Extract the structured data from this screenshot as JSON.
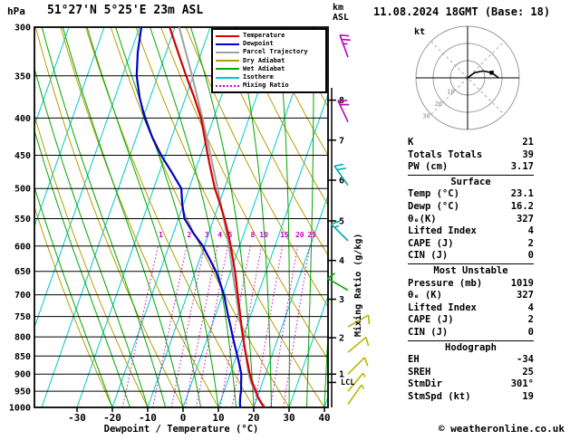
{
  "header": {
    "pressure_unit": "hPa",
    "station": "51°27'N 5°25'E 23m ASL",
    "km_label": "km",
    "asl_label": "ASL",
    "date": "11.08.2024 18GMT (Base: 18)"
  },
  "legend": {
    "items": [
      {
        "label": "Temperature",
        "color": "#d40000",
        "style": "solid"
      },
      {
        "label": "Dewpoint",
        "color": "#0000c8",
        "style": "solid"
      },
      {
        "label": "Parcel Trajectory",
        "color": "#a0a0a0",
        "style": "solid"
      },
      {
        "label": "Dry Adiabat",
        "color": "#b4a000",
        "style": "solid"
      },
      {
        "label": "Wet Adiabat",
        "color": "#00a800",
        "style": "solid"
      },
      {
        "label": "Isotherm",
        "color": "#00c8c8",
        "style": "solid"
      },
      {
        "label": "Mixing Ratio",
        "color": "#cc00cc",
        "style": "dotted"
      }
    ]
  },
  "axes": {
    "xlabel": "Dewpoint / Temperature (°C)",
    "right_label": "Mixing Ratio (g/kg)",
    "lcl_label": "LCL"
  },
  "chart_data": {
    "type": "skewt",
    "pressure_ticks": [
      300,
      350,
      400,
      450,
      500,
      550,
      600,
      650,
      700,
      750,
      800,
      850,
      900,
      950,
      1000
    ],
    "temp_ticks": [
      -30,
      -20,
      -10,
      0,
      10,
      20,
      30,
      40
    ],
    "isotherms_c": [
      -100,
      -90,
      -80,
      -70,
      -60,
      -50,
      -40,
      -30,
      -20,
      -10,
      0,
      10,
      20,
      30,
      40
    ],
    "dry_adiabats_c": [
      -20,
      -10,
      0,
      10,
      20,
      30,
      40,
      50,
      60,
      70,
      80,
      90,
      100,
      110,
      120,
      130,
      140,
      150,
      160,
      170,
      180
    ],
    "wet_adiabats_c": [
      -20,
      -15,
      -10,
      -5,
      0,
      5,
      10,
      15,
      20,
      25,
      30,
      35,
      40
    ],
    "mixing_ratios_gkg": [
      1,
      2,
      3,
      4,
      5,
      8,
      10,
      15,
      20,
      25
    ],
    "temperature_profile": [
      [
        1000,
        23.1
      ],
      [
        990,
        22.0
      ],
      [
        970,
        20.3
      ],
      [
        950,
        19.0
      ],
      [
        925,
        17.2
      ],
      [
        900,
        15.6
      ],
      [
        875,
        14.2
      ],
      [
        850,
        12.8
      ],
      [
        825,
        11.4
      ],
      [
        800,
        10.0
      ],
      [
        775,
        8.6
      ],
      [
        750,
        7.2
      ],
      [
        725,
        5.8
      ],
      [
        700,
        4.3
      ],
      [
        675,
        2.8
      ],
      [
        650,
        1.2
      ],
      [
        625,
        -0.6
      ],
      [
        600,
        -2.5
      ],
      [
        575,
        -4.6
      ],
      [
        550,
        -7.0
      ],
      [
        525,
        -9.7
      ],
      [
        500,
        -12.7
      ],
      [
        475,
        -15.3
      ],
      [
        450,
        -18.0
      ],
      [
        425,
        -20.7
      ],
      [
        400,
        -23.6
      ],
      [
        375,
        -27.5
      ],
      [
        350,
        -32.0
      ],
      [
        325,
        -36.6
      ],
      [
        300,
        -41.5
      ]
    ],
    "dewpoint_profile": [
      [
        1000,
        16.2
      ],
      [
        990,
        15.8
      ],
      [
        970,
        15.2
      ],
      [
        950,
        14.8
      ],
      [
        925,
        14.0
      ],
      [
        900,
        13.2
      ],
      [
        875,
        11.8
      ],
      [
        850,
        10.3
      ],
      [
        825,
        8.7
      ],
      [
        800,
        7.1
      ],
      [
        775,
        5.5
      ],
      [
        750,
        3.8
      ],
      [
        725,
        2.1
      ],
      [
        700,
        0.4
      ],
      [
        675,
        -1.8
      ],
      [
        650,
        -4.2
      ],
      [
        625,
        -7.2
      ],
      [
        600,
        -10.4
      ],
      [
        575,
        -14.5
      ],
      [
        550,
        -18.3
      ],
      [
        525,
        -20.4
      ],
      [
        500,
        -22.2
      ],
      [
        475,
        -26.5
      ],
      [
        450,
        -31.2
      ],
      [
        425,
        -35.5
      ],
      [
        400,
        -39.5
      ],
      [
        375,
        -43.0
      ],
      [
        350,
        -46.0
      ],
      [
        325,
        -48.0
      ],
      [
        300,
        -49.5
      ]
    ],
    "parcel_profile": [
      [
        1000,
        23.1
      ],
      [
        975,
        20.9
      ],
      [
        950,
        18.7
      ],
      [
        925,
        16.8
      ],
      [
        900,
        15.3
      ],
      [
        875,
        14.0
      ],
      [
        850,
        12.7
      ],
      [
        800,
        9.9
      ],
      [
        750,
        6.9
      ],
      [
        700,
        3.8
      ],
      [
        650,
        0.5
      ],
      [
        600,
        -3.0
      ],
      [
        550,
        -7.2
      ],
      [
        500,
        -11.9
      ],
      [
        450,
        -17.2
      ],
      [
        400,
        -23.2
      ],
      [
        350,
        -30.3
      ],
      [
        300,
        -38.8
      ]
    ],
    "km_ticks": [
      [
        1,
        900
      ],
      [
        2,
        802
      ],
      [
        3,
        710
      ],
      [
        4,
        628
      ],
      [
        5,
        554
      ],
      [
        6,
        487
      ],
      [
        7,
        429
      ],
      [
        8,
        378
      ]
    ],
    "lcl_pressure": 924,
    "wind_barbs": [
      {
        "p": 330,
        "dir": 340,
        "speed": 25,
        "color": "#bb00bb"
      },
      {
        "p": 405,
        "dir": 335,
        "speed": 20,
        "color": "#bb00bb"
      },
      {
        "p": 495,
        "dir": 325,
        "speed": 20,
        "color": "#00aaaa"
      },
      {
        "p": 590,
        "dir": 315,
        "speed": 15,
        "color": "#00aaaa"
      },
      {
        "p": 690,
        "dir": 300,
        "speed": 10,
        "color": "#00aa00"
      },
      {
        "p": 775,
        "dir": 60,
        "speed": 10,
        "color": "#b8b800"
      },
      {
        "p": 840,
        "dir": 50,
        "speed": 10,
        "color": "#b8b800"
      },
      {
        "p": 900,
        "dir": 45,
        "speed": 10,
        "color": "#b8b800"
      },
      {
        "p": 950,
        "dir": 40,
        "speed": 5,
        "color": "#b8b800"
      },
      {
        "p": 990,
        "dir": 35,
        "speed": 5,
        "color": "#b8b800"
      }
    ],
    "colors": {
      "temperature": "#d40000",
      "dewpoint": "#0000c8",
      "parcel": "#a0a0a0",
      "dry_adiabat": "#b4a000",
      "wet_adiabat": "#00a800",
      "isotherm": "#00c8c8",
      "mixing_ratio": "#cc00cc",
      "grid": "#000000"
    },
    "p_range": [
      300,
      1000
    ],
    "t_axis_range": [
      -30,
      40
    ]
  },
  "hodograph": {
    "unit_label": "kt",
    "rings": [
      10,
      20,
      30
    ],
    "trace_uv": [
      [
        0,
        0
      ],
      [
        4,
        3
      ],
      [
        9,
        4
      ],
      [
        14,
        3
      ],
      [
        18,
        0
      ]
    ],
    "marker_uv": [
      14,
      3
    ]
  },
  "table": {
    "rows_top": [
      [
        "K",
        "21"
      ],
      [
        "Totals Totals",
        "39"
      ],
      [
        "PW (cm)",
        "3.17"
      ]
    ],
    "surface_header": "Surface",
    "surface_rows": [
      [
        "Temp (°C)",
        "23.1"
      ],
      [
        "Dewp (°C)",
        "16.2"
      ],
      [
        "θₑ(K)",
        "327"
      ],
      [
        "Lifted Index",
        "4"
      ],
      [
        "CAPE (J)",
        "2"
      ],
      [
        "CIN (J)",
        "0"
      ]
    ],
    "mu_header": "Most Unstable",
    "mu_rows": [
      [
        "Pressure (mb)",
        "1019"
      ],
      [
        "θₑ (K)",
        "327"
      ],
      [
        "Lifted Index",
        "4"
      ],
      [
        "CAPE (J)",
        "2"
      ],
      [
        "CIN (J)",
        "0"
      ]
    ],
    "hodo_header": "Hodograph",
    "hodo_rows": [
      [
        "EH",
        "-34"
      ],
      [
        "SREH",
        "25"
      ],
      [
        "StmDir",
        "301°"
      ],
      [
        "StmSpd (kt)",
        "19"
      ]
    ]
  },
  "footer": {
    "copyright": "© weatheronline.co.uk"
  }
}
